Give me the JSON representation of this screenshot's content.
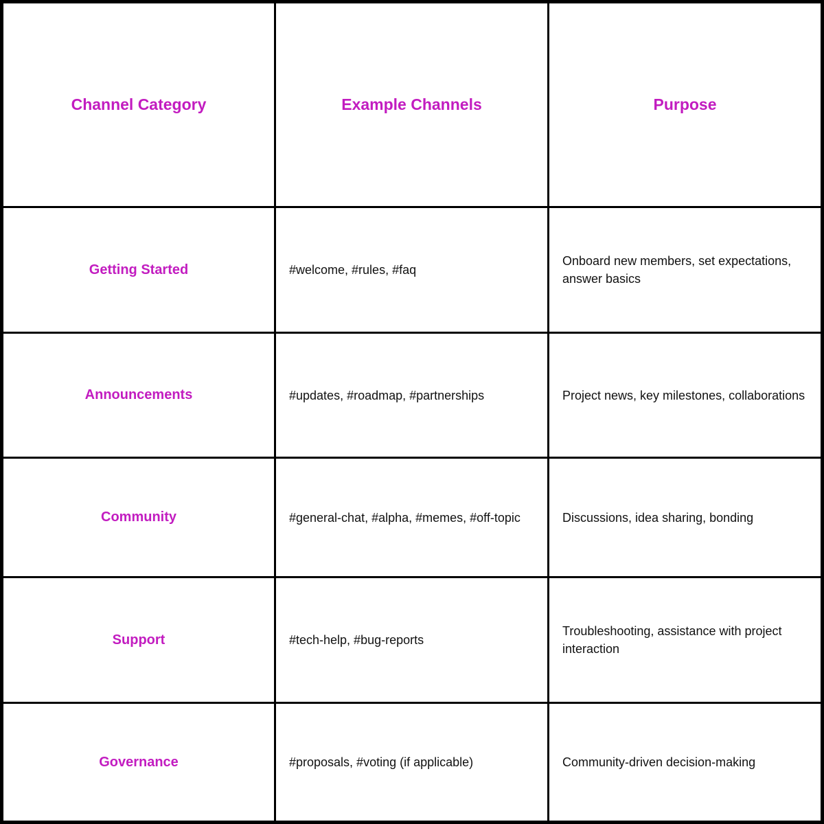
{
  "colors": {
    "accent": "#c21cc0",
    "border": "#000000",
    "text": "#111111"
  },
  "table": {
    "headers": [
      "Channel Category",
      "Example Channels",
      "Purpose"
    ],
    "rows": [
      {
        "category": "Getting Started",
        "channels": "#welcome, #rules, #faq",
        "purpose": "Onboard new members, set expectations, answer basics"
      },
      {
        "category": "Announcements",
        "channels": "#updates, #roadmap, #partnerships",
        "purpose": "Project news, key milestones, collaborations"
      },
      {
        "category": "Community",
        "channels": "#general-chat, #alpha, #memes, #off-topic",
        "purpose": "Discussions, idea sharing, bonding"
      },
      {
        "category": "Support",
        "channels": "#tech-help, #bug-reports",
        "purpose": "Troubleshooting, assistance with project interaction"
      },
      {
        "category": "Governance",
        "channels": "#proposals, #voting (if applicable)",
        "purpose": "Community-driven decision-making"
      }
    ]
  }
}
